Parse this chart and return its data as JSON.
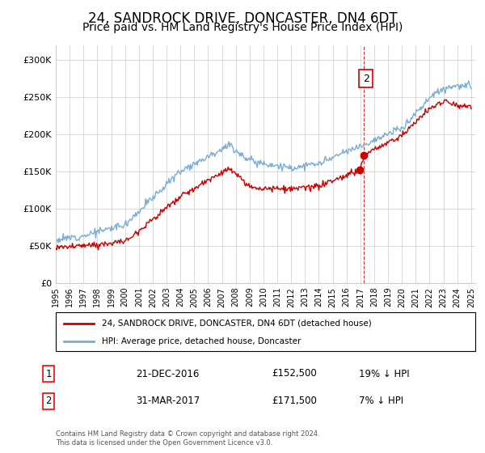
{
  "title": "24, SANDROCK DRIVE, DONCASTER, DN4 6DT",
  "subtitle": "Price paid vs. HM Land Registry's House Price Index (HPI)",
  "title_fontsize": 12,
  "subtitle_fontsize": 10,
  "background_color": "#ffffff",
  "plot_bg_color": "#ffffff",
  "grid_color": "#cccccc",
  "hpi_color": "#7aadd4",
  "price_color": "#cc0000",
  "marker_color": "#cc0000",
  "vline_color": "#cc0000",
  "ylim": [
    0,
    320000
  ],
  "yticks": [
    0,
    50000,
    100000,
    150000,
    200000,
    250000,
    300000
  ],
  "ytick_labels": [
    "£0",
    "£50K",
    "£100K",
    "£150K",
    "£200K",
    "£250K",
    "£300K"
  ],
  "transaction1_date": "21-DEC-2016",
  "transaction1_price": 152500,
  "transaction1_label": "1",
  "transaction1_pct": "19% ↓ HPI",
  "transaction2_date": "31-MAR-2017",
  "transaction2_price": 171500,
  "transaction2_label": "2",
  "transaction2_pct": "7% ↓ HPI",
  "legend_line1": "24, SANDROCK DRIVE, DONCASTER, DN4 6DT (detached house)",
  "legend_line2": "HPI: Average price, detached house, Doncaster",
  "footer": "Contains HM Land Registry data © Crown copyright and database right 2024.\nThis data is licensed under the Open Government Licence v3.0.",
  "t1_year": 2016.97,
  "t2_year": 2017.25
}
